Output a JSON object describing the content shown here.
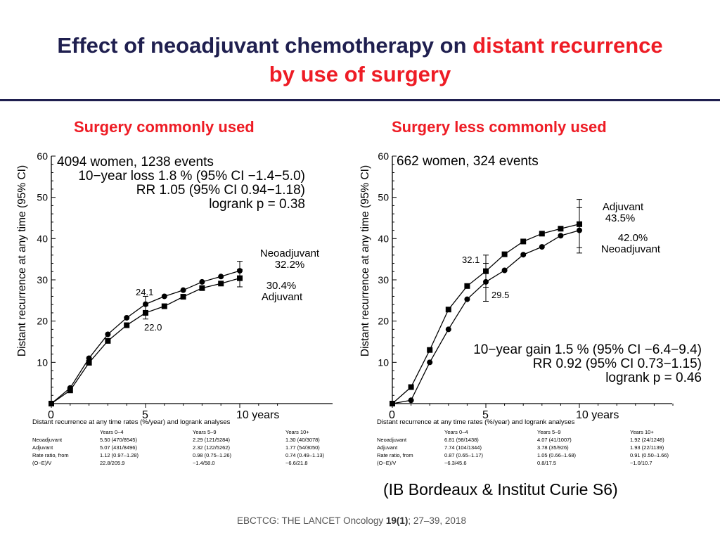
{
  "title": {
    "part1": "Effect of neoadjuvant chemotherapy on ",
    "part2": "distant recurrence",
    "part3": "by use of surgery",
    "color_main": "#1f1f4f",
    "color_accent": "#ee1c25"
  },
  "panels": [
    {
      "heading": "Surgery commonly used",
      "stats": [
        "4094 women, 1238 events",
        "10−year loss  1.8 % (95% CI −1.4−5.0)",
        "RR 1.05 (95% CI 0.94−1.18)",
        "logrank p = 0.38"
      ],
      "label_neo": [
        "Neoadjuvant",
        "32.2%"
      ],
      "label_adj": [
        "30.4%",
        "Adjuvant"
      ],
      "label_5yr_neo": "24.1",
      "label_5yr_adj": "22.0",
      "table": {
        "title": "Distant recurrence at any time rates (%/year) and logrank analyses",
        "headers": [
          "",
          "Years 0–4",
          "Years 5–9",
          "Years 10+"
        ],
        "rows": [
          [
            "Neoadjuvant",
            "5.50 (470/8545)",
            "2.29 (121/5284)",
            "1.30 (40/3078)"
          ],
          [
            "Adjuvant",
            "5.07 (431/8496)",
            "2.32 (122/5262)",
            "1.77 (54/3050)"
          ],
          [
            "Rate ratio, from",
            "1.12 (0.97–1.28)",
            "0.98 (0.75–1.26)",
            "0.74 (0.49–1.13)"
          ],
          [
            "(O−E)/V",
            "22.8/205.9",
            "−1.4/58.0",
            "−6.6/21.8"
          ]
        ]
      }
    },
    {
      "heading": "Surgery less commonly used",
      "stats": [
        "662 women, 324 events",
        "10−year gain  1.5 % (95% CI −6.4−9.4)",
        "RR 0.92 (95% CI 0.73−1.15)",
        "logrank p = 0.46"
      ],
      "label_adj": [
        "Adjuvant",
        "43.5%"
      ],
      "label_neo": [
        "42.0%",
        "Neoadjuvant"
      ],
      "label_5yr_adj": "32.1",
      "label_5yr_neo": "29.5",
      "table": {
        "title": "Distant recurrence at any time rates (%/year) and logrank analyses",
        "headers": [
          "",
          "Years 0–4",
          "Years 5–9",
          "Years 10+"
        ],
        "rows": [
          [
            "Neoadjuvant",
            "6.81 (98/1438)",
            "4.07 (41/1007)",
            "1.92 (24/1248)"
          ],
          [
            "Adjuvant",
            "7.74 (104/1344)",
            "3.78 (35/926)",
            "1.93 (22/1139)"
          ],
          [
            "Rate ratio, from",
            "0.87 (0.65–1.17)",
            "1.05 (0.66–1.68)",
            "0.91 (0.50–1.66)"
          ],
          [
            "(O−E)/V",
            "−6.3/45.6",
            "0.8/17.5",
            "−1.0/10.7"
          ]
        ]
      }
    }
  ],
  "source_note": "(IB Bordeaux & Institut Curie S6)",
  "citation": {
    "pre": "EBCTCG: THE LANCET Oncology ",
    "bold": "19(1)",
    "post": ";  27–39, 2018"
  },
  "chart_data": [
    {
      "type": "line",
      "ylabel": "Distant recurrence at any time (95% CI)",
      "x_tick_labels": [
        "0",
        "5",
        "10 years"
      ],
      "x_ticks": [
        0,
        5,
        10
      ],
      "xlim": [
        0,
        12
      ],
      "ylim": [
        0,
        60
      ],
      "y_ticks": [
        10,
        20,
        30,
        40,
        50,
        60
      ],
      "y_minor_step": 2,
      "grid": false,
      "series": [
        {
          "name": "Neoadjuvant",
          "marker": "circle",
          "x": [
            0,
            1,
            2,
            3,
            4,
            5,
            6,
            7,
            8,
            9,
            10
          ],
          "y": [
            0,
            3.8,
            11.0,
            16.8,
            20.8,
            24.1,
            26.0,
            27.5,
            29.5,
            30.8,
            32.2
          ],
          "ci_at": [
            {
              "x": 5,
              "lo": 22.5,
              "hi": 26.0
            },
            {
              "x": 10,
              "lo": 30.0,
              "hi": 34.5
            }
          ]
        },
        {
          "name": "Adjuvant",
          "marker": "square",
          "x": [
            0,
            1,
            2,
            3,
            4,
            5,
            6,
            7,
            8,
            9,
            10
          ],
          "y": [
            0,
            3.2,
            9.9,
            15.2,
            19.0,
            22.0,
            23.6,
            25.9,
            28.0,
            29.1,
            30.4
          ],
          "ci_at": [
            {
              "x": 5,
              "lo": 20.5,
              "hi": 23.7
            },
            {
              "x": 10,
              "lo": 28.3,
              "hi": 32.5
            }
          ]
        }
      ]
    },
    {
      "type": "line",
      "ylabel": "Distant recurrence at any time (95% CI)",
      "x_tick_labels": [
        "0",
        "5",
        "10 years"
      ],
      "x_ticks": [
        0,
        5,
        10
      ],
      "xlim": [
        0,
        15
      ],
      "ylim": [
        0,
        60
      ],
      "y_ticks": [
        10,
        20,
        30,
        40,
        50,
        60
      ],
      "y_minor_step": 2,
      "grid": false,
      "series": [
        {
          "name": "Adjuvant",
          "marker": "square",
          "x": [
            0,
            1,
            2,
            3,
            4,
            5,
            6,
            7,
            8,
            9,
            10
          ],
          "y": [
            0,
            4.0,
            13.0,
            22.8,
            28.5,
            32.1,
            36.2,
            39.3,
            41.2,
            42.4,
            43.5
          ],
          "ci_at": [
            {
              "x": 5,
              "lo": 28.2,
              "hi": 36.0
            },
            {
              "x": 10,
              "lo": 37.8,
              "hi": 49.5
            }
          ]
        },
        {
          "name": "Neoadjuvant",
          "marker": "circle",
          "x": [
            0,
            1,
            2,
            3,
            4,
            5,
            6,
            7,
            8,
            9,
            10
          ],
          "y": [
            0,
            0.8,
            10.0,
            18.0,
            25.3,
            29.5,
            32.3,
            36.1,
            38.0,
            40.7,
            42.0
          ],
          "ci_at": [
            {
              "x": 5,
              "lo": 24.8,
              "hi": 34.0
            },
            {
              "x": 10,
              "lo": 36.5,
              "hi": 47.5
            }
          ]
        }
      ]
    }
  ]
}
